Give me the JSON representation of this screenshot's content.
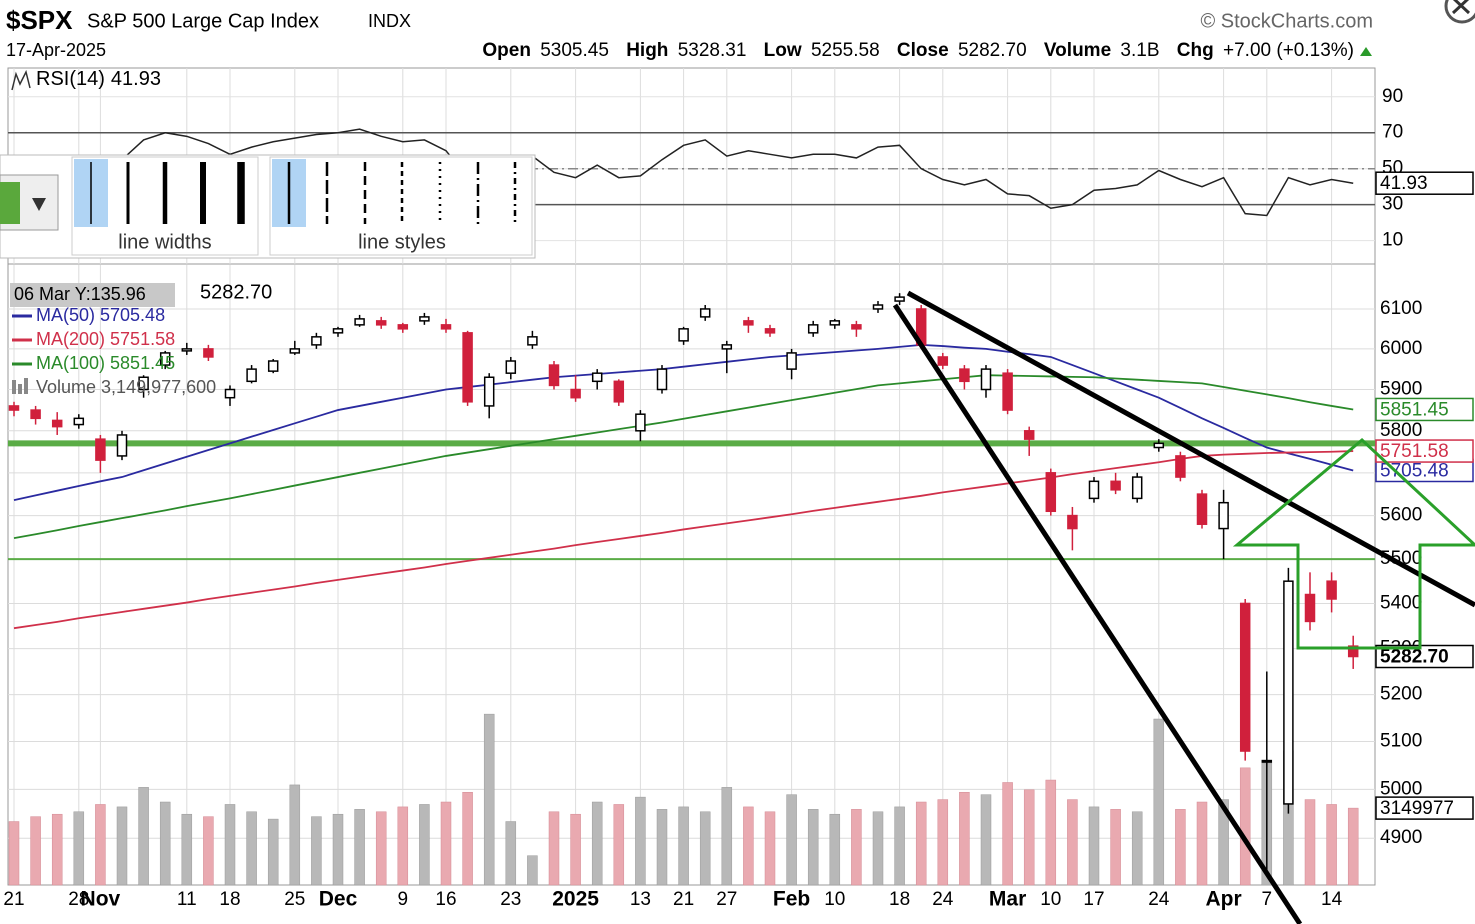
{
  "toolbar": {
    "widths_label": "line widths",
    "styles_label": "line styles"
  },
  "chart_data": {
    "type": "candlestick",
    "header": {
      "symbol": "$SPX",
      "name": "S&P 500 Large Cap Index",
      "exchange": "INDX",
      "source": "© StockCharts.com",
      "date": "17-Apr-2025",
      "open_label": "Open",
      "open": "5305.45",
      "high_label": "High",
      "high": "5328.31",
      "low_label": "Low",
      "low": "5255.58",
      "close_label": "Close",
      "close": "5282.70",
      "volume_label": "Volume",
      "volume": "3.1B",
      "chg_label": "Chg",
      "chg": "+7.00 (+0.13%)"
    },
    "tooltip": "06 Mar Y:135.96",
    "categories": [
      "21",
      null,
      null,
      "28",
      "Nov",
      null,
      null,
      null,
      "11",
      null,
      "18",
      null,
      null,
      "25",
      null,
      "Dec",
      null,
      null,
      "9",
      null,
      "16",
      null,
      null,
      "23",
      null,
      null,
      "2025",
      null,
      null,
      "13",
      null,
      "21",
      null,
      "27",
      null,
      null,
      "Feb",
      null,
      "10",
      null,
      null,
      "18",
      null,
      "24",
      null,
      null,
      "Mar",
      null,
      "10",
      null,
      "17",
      null,
      null,
      "24",
      null,
      null,
      "Apr",
      null,
      "7",
      null,
      null,
      "14",
      null
    ],
    "ohlc": [
      [
        5860,
        5870,
        5835,
        5850
      ],
      [
        5850,
        5860,
        5815,
        5830
      ],
      [
        5825,
        5845,
        5790,
        5810
      ],
      [
        5815,
        5840,
        5805,
        5830
      ],
      [
        5780,
        5790,
        5700,
        5730
      ],
      [
        5740,
        5800,
        5730,
        5790
      ],
      [
        5900,
        5935,
        5880,
        5930
      ],
      [
        5960,
        5995,
        5950,
        5990
      ],
      [
        5995,
        6015,
        5985,
        6000
      ],
      [
        6000,
        6010,
        5970,
        5980
      ],
      [
        5880,
        5910,
        5860,
        5900
      ],
      [
        5920,
        5960,
        5915,
        5950
      ],
      [
        5945,
        5975,
        5940,
        5970
      ],
      [
        5990,
        6020,
        5985,
        6000
      ],
      [
        6010,
        6040,
        6000,
        6030
      ],
      [
        6040,
        6055,
        6030,
        6050
      ],
      [
        6060,
        6085,
        6055,
        6075
      ],
      [
        6070,
        6080,
        6050,
        6060
      ],
      [
        6060,
        6065,
        6040,
        6050
      ],
      [
        6070,
        6090,
        6060,
        6080
      ],
      [
        6060,
        6075,
        6040,
        6050
      ],
      [
        6040,
        6045,
        5860,
        5870
      ],
      [
        5860,
        5940,
        5830,
        5930
      ],
      [
        5940,
        5980,
        5925,
        5970
      ],
      [
        6010,
        6045,
        6000,
        6030
      ],
      [
        5960,
        5970,
        5900,
        5910
      ],
      [
        5900,
        5935,
        5870,
        5880
      ],
      [
        5920,
        5950,
        5900,
        5940
      ],
      [
        5920,
        5925,
        5860,
        5870
      ],
      [
        5800,
        5850,
        5775,
        5840
      ],
      [
        5900,
        5960,
        5890,
        5950
      ],
      [
        6020,
        6055,
        6010,
        6050
      ],
      [
        6080,
        6110,
        6070,
        6100
      ],
      [
        6000,
        6020,
        5940,
        6010
      ],
      [
        6070,
        6080,
        6040,
        6060
      ],
      [
        6050,
        6060,
        6030,
        6040
      ],
      [
        5950,
        6000,
        5925,
        5990
      ],
      [
        6040,
        6070,
        6030,
        6060
      ],
      [
        6060,
        6075,
        6050,
        6070
      ],
      [
        6060,
        6070,
        6030,
        6050
      ],
      [
        6100,
        6120,
        6090,
        6110
      ],
      [
        6120,
        6140,
        6110,
        6130
      ],
      [
        6100,
        6110,
        6000,
        6010
      ],
      [
        5980,
        5990,
        5950,
        5960
      ],
      [
        5950,
        5960,
        5900,
        5920
      ],
      [
        5900,
        5960,
        5880,
        5950
      ],
      [
        5940,
        5950,
        5840,
        5850
      ],
      [
        5800,
        5810,
        5740,
        5780
      ],
      [
        5700,
        5710,
        5600,
        5610
      ],
      [
        5600,
        5620,
        5520,
        5570
      ],
      [
        5640,
        5690,
        5630,
        5680
      ],
      [
        5680,
        5700,
        5650,
        5660
      ],
      [
        5640,
        5700,
        5630,
        5690
      ],
      [
        5760,
        5780,
        5750,
        5770
      ],
      [
        5740,
        5750,
        5680,
        5690
      ],
      [
        5650,
        5660,
        5570,
        5580
      ],
      [
        5570,
        5660,
        5500,
        5630
      ],
      [
        5400,
        5410,
        5060,
        5080
      ],
      [
        5060,
        5250,
        4835,
        5060
      ],
      [
        4970,
        5480,
        4950,
        5450
      ],
      [
        5420,
        5470,
        5340,
        5360
      ],
      [
        5450,
        5470,
        5380,
        5410
      ],
      [
        5305.45,
        5328.31,
        5255.58,
        5282.7
      ]
    ],
    "up_color": "#000000",
    "down_color": "#d0203c",
    "ylim": [
      4806,
      6212
    ],
    "yticks": [
      4900,
      5000,
      5100,
      5200,
      5300,
      5400,
      5500,
      5600,
      5700,
      5800,
      5900,
      6000,
      6100
    ],
    "log": true,
    "grid": true,
    "series": [
      {
        "name": "MA(50)",
        "color": "#2a2aa0",
        "values": [
          5636,
          5647,
          5658,
          5669,
          5680,
          5690,
          5706,
          5722,
          5738,
          5754,
          5770,
          5786,
          5802,
          5818,
          5834,
          5850,
          5860,
          5870,
          5880,
          5890,
          5900,
          5906,
          5912,
          5918,
          5924,
          5930,
          5934,
          5938,
          5942,
          5946,
          5950,
          5956,
          5962,
          5968,
          5974,
          5980,
          5984,
          5988,
          5992,
          5996,
          6000,
          6005,
          6010,
          6007,
          6003,
          6000,
          5993,
          5987,
          5980,
          5960,
          5940,
          5920,
          5900,
          5880,
          5855,
          5830,
          5807,
          5783,
          5760,
          5746,
          5733,
          5719,
          5705.48
        ]
      },
      {
        "name": "MA(200)",
        "color": "#d0304a",
        "values": [
          5345,
          5352,
          5359,
          5367,
          5374,
          5381,
          5388,
          5395,
          5402,
          5410,
          5417,
          5424,
          5431,
          5438,
          5446,
          5453,
          5460,
          5467,
          5474,
          5481,
          5489,
          5496,
          5503,
          5510,
          5517,
          5524,
          5532,
          5539,
          5546,
          5553,
          5560,
          5568,
          5575,
          5582,
          5589,
          5596,
          5603,
          5611,
          5618,
          5625,
          5632,
          5639,
          5646,
          5654,
          5661,
          5668,
          5675,
          5682,
          5689,
          5697,
          5704,
          5711,
          5718,
          5725,
          5733,
          5740,
          5743,
          5745,
          5747,
          5748,
          5749,
          5750,
          5751.58
        ]
      },
      {
        "name": "MA(100)",
        "color": "#2a8a2a",
        "values": [
          5548,
          5557,
          5566,
          5576,
          5585,
          5594,
          5603,
          5612,
          5622,
          5631,
          5640,
          5650,
          5660,
          5670,
          5680,
          5690,
          5700,
          5710,
          5720,
          5730,
          5740,
          5748,
          5756,
          5764,
          5772,
          5780,
          5788,
          5796,
          5804,
          5812,
          5820,
          5829,
          5838,
          5847,
          5856,
          5865,
          5874,
          5883,
          5892,
          5901,
          5910,
          5915,
          5920,
          5925,
          5930,
          5935,
          5934,
          5933,
          5932,
          5931,
          5930,
          5927,
          5924,
          5921,
          5918,
          5915,
          5906,
          5897,
          5888,
          5879,
          5869,
          5860,
          5851.45
        ]
      }
    ],
    "volume": {
      "name": "Volume",
      "label": "3,149,977,600",
      "tag": "3149977",
      "ylim": [
        0,
        25.4
      ],
      "up_color": "#b8b8b8",
      "down_color": "#e9a9b0",
      "values": [
        2.6,
        2.8,
        2.9,
        3.0,
        3.3,
        3.2,
        4.0,
        3.4,
        2.9,
        2.8,
        3.3,
        3.0,
        2.7,
        4.1,
        2.8,
        2.9,
        3.1,
        3.0,
        3.2,
        3.3,
        3.4,
        3.8,
        7.0,
        2.6,
        1.2,
        3.0,
        2.9,
        3.4,
        3.3,
        3.6,
        3.1,
        3.2,
        3.0,
        4.0,
        3.2,
        3.0,
        3.7,
        3.1,
        2.9,
        3.1,
        3.0,
        3.2,
        3.4,
        3.5,
        3.8,
        3.7,
        4.2,
        3.9,
        4.3,
        3.5,
        3.2,
        3.1,
        3.0,
        6.8,
        3.1,
        3.4,
        3.5,
        4.8,
        5.0,
        5.5,
        3.5,
        3.3,
        3.15
      ]
    },
    "hlines": {
      "color": "#5aac46",
      "values": [
        5770,
        5500
      ]
    },
    "rsi": {
      "name": "RSI(14)",
      "color": "#222222",
      "ylim": [
        -3,
        106
      ],
      "yticks": [
        10,
        30,
        50,
        70,
        90
      ],
      "ref_lines": [
        30,
        50,
        70
      ],
      "values": [
        55,
        52,
        50,
        52,
        45,
        55,
        66,
        70,
        68,
        64,
        58,
        62,
        65,
        67,
        69,
        70,
        72,
        68,
        65,
        66,
        60,
        45,
        50,
        52,
        57,
        48,
        45,
        52,
        45,
        46,
        55,
        63,
        66,
        57,
        60,
        58,
        56,
        58,
        58,
        56,
        62,
        63,
        50,
        44,
        41,
        44,
        36,
        35,
        28,
        30,
        38,
        39,
        41,
        49,
        44,
        40,
        45,
        25,
        24,
        45,
        41,
        44,
        41.93
      ]
    }
  }
}
